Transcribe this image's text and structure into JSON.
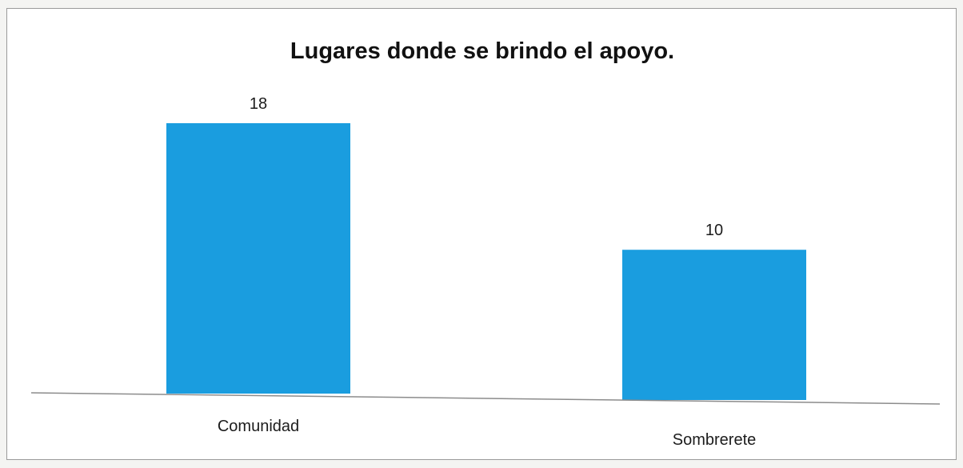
{
  "chart_data": {
    "type": "bar",
    "title": "Lugares donde se brindo el apoyo.",
    "categories": [
      "Comunidad",
      "Sombrerete"
    ],
    "values": [
      18,
      10
    ],
    "data_labels": [
      "18",
      "10"
    ],
    "xlabel": "",
    "ylabel": "",
    "ylim": [
      0,
      18
    ],
    "grid": false,
    "legend": "none",
    "colors": {
      "bar": "#1a9ddf",
      "axis": "#8c8c8c",
      "text": "#1c1c1c"
    }
  }
}
